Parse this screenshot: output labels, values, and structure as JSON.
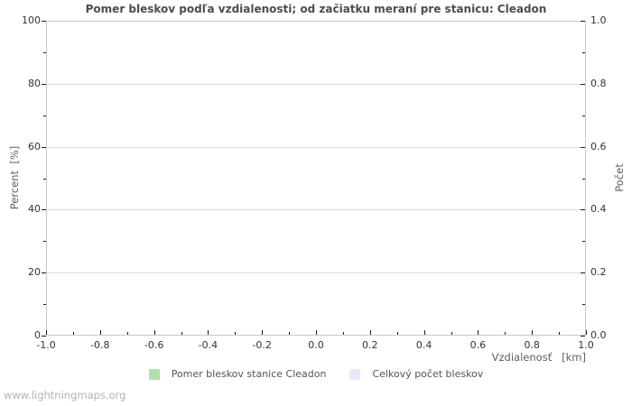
{
  "page": {
    "watermark": "www.lightningmaps.org"
  },
  "colors": {
    "title_text": "#4d4d4d",
    "axis_text": "#5f5f5f",
    "tick_text": "#333333",
    "grid": "#d9d9d9",
    "border": "#c9c9c9",
    "series_green": "#b3dfb3",
    "series_lavender": "#e9e9fa"
  },
  "chart_data": {
    "type": "bar",
    "title": "Pomer bleskov podľa vzdialenosti; od začiatku meraní pre stanicu: Cleadon",
    "xlabel": "Vzdialenosť   [km]",
    "ylabel": "Percent  [%]",
    "y2label": "Počet",
    "x_axis": {
      "range": [
        -1.0,
        1.0
      ],
      "tick_labels": [
        "-1.0",
        "-0.8",
        "-0.6",
        "-0.4",
        "-0.2",
        "0.0",
        "0.2",
        "0.4",
        "0.6",
        "0.8",
        "1.0"
      ],
      "minor_ticks_between_majors": true
    },
    "y_axis_left": {
      "range": [
        0,
        100
      ],
      "tick_labels": [
        "0",
        "20",
        "40",
        "60",
        "80",
        "100"
      ],
      "minor_ticks_between_majors": true
    },
    "y_axis_right": {
      "range": [
        0.0,
        1.0
      ],
      "tick_labels": [
        "0.0",
        "0.2",
        "0.4",
        "0.6",
        "0.8",
        "1.0"
      ],
      "minor_ticks_between_majors": true
    },
    "grid": "horizontal-major-only",
    "legend_position": "bottom-center",
    "series": [
      {
        "name": "Pomer bleskov stanice Cleadon",
        "color": "#b3dfb3",
        "x": [],
        "values": []
      },
      {
        "name": "Celkový počet bleskov",
        "color": "#e9e9fa",
        "x": [],
        "values": []
      }
    ]
  }
}
